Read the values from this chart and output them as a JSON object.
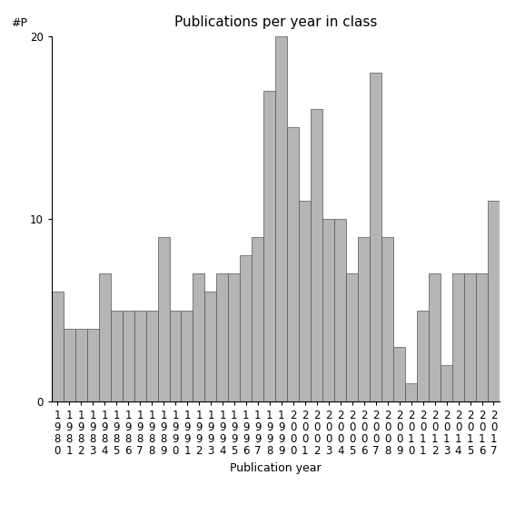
{
  "years": [
    1980,
    1981,
    1982,
    1983,
    1984,
    1985,
    1986,
    1987,
    1988,
    1989,
    1990,
    1991,
    1992,
    1993,
    1994,
    1995,
    1996,
    1997,
    1998,
    1999,
    2000,
    2001,
    2002,
    2003,
    2004,
    2005,
    2006,
    2007,
    2008,
    2009,
    2010,
    2011,
    2012,
    2013,
    2014,
    2015,
    2016,
    2017
  ],
  "values": [
    6,
    4,
    4,
    4,
    7,
    5,
    5,
    5,
    5,
    9,
    5,
    5,
    7,
    6,
    7,
    7,
    8,
    9,
    17,
    20,
    15,
    11,
    16,
    10,
    10,
    7,
    9,
    18,
    9,
    3,
    1,
    5,
    7,
    2,
    7,
    7,
    7,
    11
  ],
  "bar_color": "#b5b5b5",
  "bar_edgecolor": "#555555",
  "title": "Publications per year in class",
  "xlabel": "Publication year",
  "ylabel": "#P",
  "ylim": [
    0,
    20
  ],
  "yticks": [
    0,
    10,
    20
  ],
  "background_color": "#ffffff",
  "title_fontsize": 11,
  "label_fontsize": 9,
  "tick_fontsize": 8.5
}
